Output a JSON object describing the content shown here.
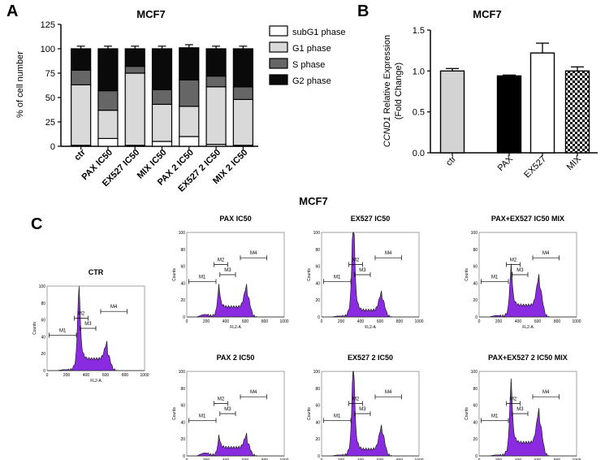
{
  "panels": {
    "A": "A",
    "B": "B",
    "C": "C"
  },
  "figure_title_c": "MCF7",
  "chart_data": [
    {
      "type": "bar",
      "stacked": true,
      "panel": "A",
      "title": "MCF7",
      "ylabel": "% of cell number",
      "ylim": [
        0,
        125
      ],
      "yticks": [
        0,
        25,
        50,
        75,
        100,
        125
      ],
      "categories": [
        "ctr",
        "PAX IC50",
        "EX527 IC50",
        "MIX IC50",
        "PAX 2 IC50",
        "EX527 2 IC50",
        "MIX 2 IC50"
      ],
      "legend_position": "right",
      "series": [
        {
          "name": "subG1 phase",
          "color": "#ffffff",
          "values": [
            1,
            8,
            1,
            5,
            10,
            2,
            1
          ]
        },
        {
          "name": "G1 phase",
          "color": "#d9d9d9",
          "values": [
            62,
            29,
            74,
            38,
            31,
            59,
            47
          ]
        },
        {
          "name": "S phase",
          "color": "#666666",
          "values": [
            15,
            20,
            7,
            15,
            27,
            11,
            13
          ]
        },
        {
          "name": "G2 phase",
          "color": "#0a0a0a",
          "values": [
            22,
            43,
            18,
            42,
            33,
            28,
            39
          ]
        }
      ],
      "errors": [
        1,
        1,
        1,
        1,
        1.5,
        1,
        1
      ]
    },
    {
      "type": "bar",
      "panel": "B",
      "title": "MCF7",
      "ylabel": "CCND1 Relative Expression (Fold Change)",
      "ylabel_italic_part": "CCND1",
      "ylabel_line1": " Relative Expression",
      "ylabel_line2": "(Fold Change)",
      "ylim": [
        0,
        1.5
      ],
      "yticks": [
        0.0,
        0.5,
        1.0,
        1.5
      ],
      "ytick_labels": [
        "0.0",
        "0.5",
        "1.0",
        "1.5"
      ],
      "categories": [
        "ctr",
        "PAX",
        "EX527",
        "MIX"
      ],
      "values": [
        1.0,
        0.94,
        1.22,
        1.0
      ],
      "errors": [
        0.03,
        0.01,
        0.12,
        0.05
      ],
      "fills": [
        "#d3d3d3",
        "#000000",
        "#ffffff",
        "checker"
      ]
    },
    {
      "type": "histogram",
      "panel": "C",
      "xlabel": "FL2-A",
      "ylabel": "Counts",
      "xlim": [
        0,
        1000
      ],
      "xticks": [
        "0",
        "200",
        "400",
        "600",
        "800",
        "1000"
      ],
      "ylim": [
        0,
        100
      ],
      "yticks": [
        "0",
        "20",
        "40",
        "60",
        "80",
        "100"
      ],
      "gate_labels": [
        "M1",
        "M2",
        "M3",
        "M4"
      ],
      "fill_color": "#8a2be2",
      "plots": [
        {
          "title": "CTR",
          "g1_height": 0.72,
          "g2_height": 0.2,
          "s_level": 0.14,
          "subg1": 0.02
        },
        {
          "title": "PAX IC50",
          "g1_height": 0.22,
          "g2_height": 0.26,
          "s_level": 0.12,
          "subg1": 0.05
        },
        {
          "title": "EX527 IC50",
          "g1_height": 0.97,
          "g2_height": 0.22,
          "s_level": 0.08,
          "subg1": 0.02
        },
        {
          "title": "PAX+EX527 IC50 MIX",
          "g1_height": 0.4,
          "g2_height": 0.36,
          "s_level": 0.14,
          "subg1": 0.03
        },
        {
          "title": "PAX 2 IC50",
          "g1_height": 0.12,
          "g2_height": 0.16,
          "s_level": 0.1,
          "subg1": 0.06
        },
        {
          "title": "EX527 2 IC50",
          "g1_height": 0.88,
          "g2_height": 0.28,
          "s_level": 0.08,
          "subg1": 0.02
        },
        {
          "title": "PAX+EX527 2 IC50 MIX",
          "g1_height": 0.62,
          "g2_height": 0.4,
          "s_level": 0.16,
          "subg1": 0.02
        }
      ]
    }
  ]
}
